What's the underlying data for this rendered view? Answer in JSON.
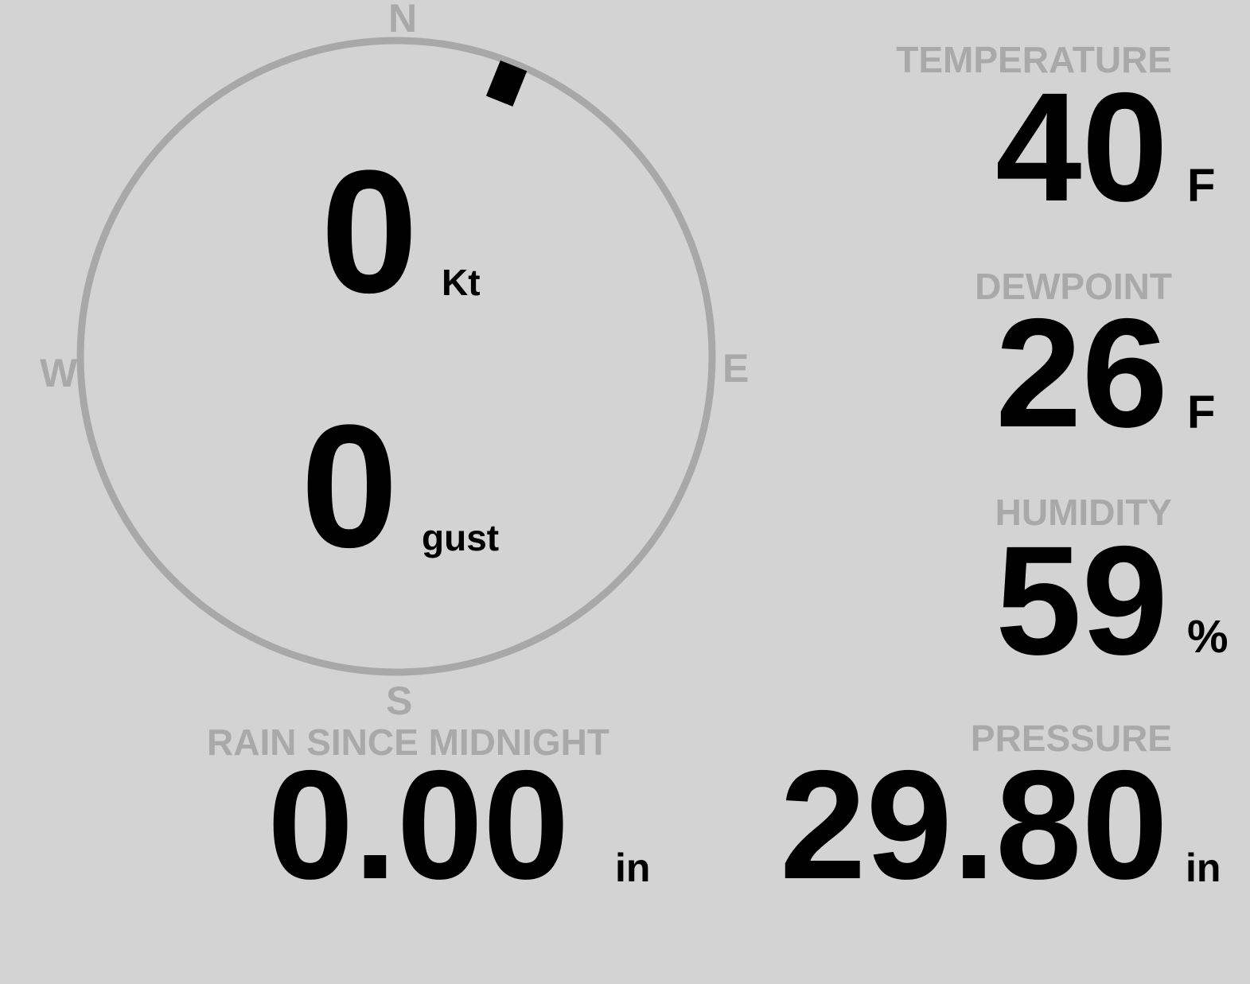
{
  "colors": {
    "background": "#d3d3d3",
    "label": "#a9a9a9",
    "ring": "#a8a8a8",
    "value": "#000000",
    "marker": "#000000"
  },
  "compass": {
    "n": "N",
    "e": "E",
    "s": "S",
    "w": "W"
  },
  "wind": {
    "speed": "0",
    "speed_unit": "Kt",
    "gust": "0",
    "gust_unit": "gust",
    "direction_deg": 22
  },
  "temperature": {
    "label": "TEMPERATURE",
    "value": "40",
    "unit": "F"
  },
  "dewpoint": {
    "label": "DEWPOINT",
    "value": "26",
    "unit": "F"
  },
  "humidity": {
    "label": "HUMIDITY",
    "value": "59",
    "unit": "%"
  },
  "rain": {
    "label": "RAIN SINCE MIDNIGHT",
    "value": "0.00",
    "unit": "in"
  },
  "pressure": {
    "label": "PRESSURE",
    "value": "29.80",
    "unit": "in"
  }
}
